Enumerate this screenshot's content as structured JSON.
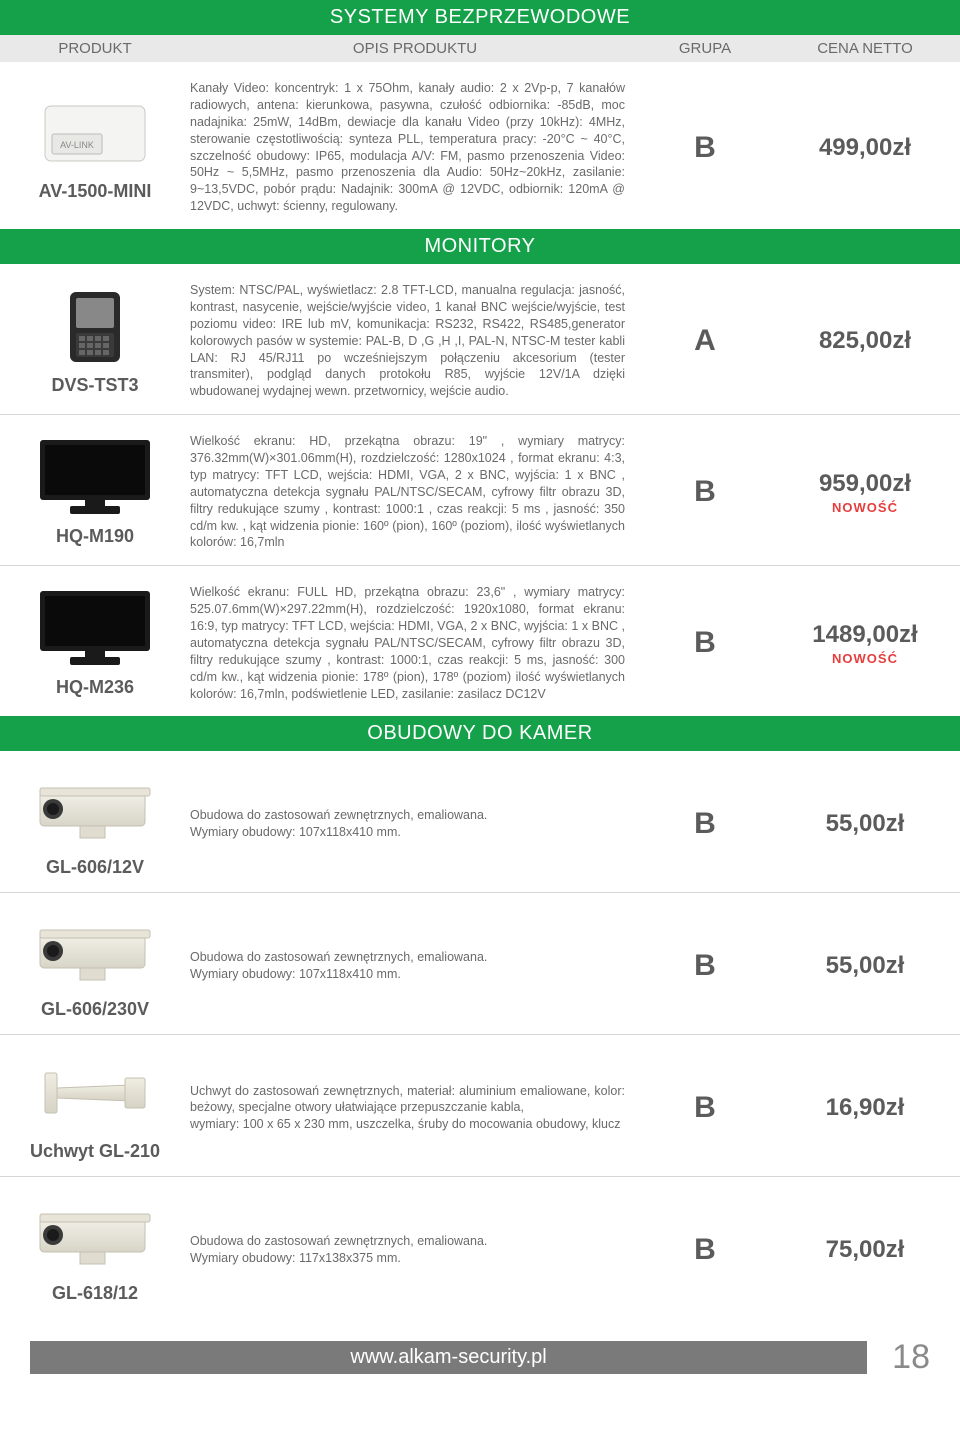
{
  "colors": {
    "green": "#14a14a",
    "header_grey": "#e9e9e9",
    "text": "#5c5c5c",
    "red": "#e63e3e",
    "footer_grey": "#7a7a7a"
  },
  "headers": {
    "product": "PRODUKT",
    "description": "OPIS PRODUKTU",
    "group": "GRUPA",
    "price": "CENA NETTO"
  },
  "sections": [
    {
      "title": "SYSTEMY BEZPRZEWODOWE",
      "show_col_headers": true,
      "rows": [
        {
          "icon": "box",
          "name": "AV-1500-MINI",
          "desc": "Kanały Video: koncentryk: 1 x 75Ohm, kanały audio: 2 x 2Vp-p, 7 kanałów radiowych, antena: kierunkowa, pasywna, czułość odbiornika: -85dB, moc nadajnika: 25mW, 14dBm, dewiacje dla kanału Video (przy 10kHz): 4MHz, sterowanie częstotliwością: synteza PLL, temperatura pracy: -20°C ~ 40°C, szczelność obudowy: IP65, modulacja A/V: FM, pasmo przenoszenia Video: 50Hz ~ 5,5MHz, pasmo przenoszenia dla Audio: 50Hz~20kHz, zasilanie: 9~13,5VDC, pobór prądu: Nadajnik: 300mA @ 12VDC, odbiornik: 120mA @ 12VDC, uchwyt: ścienny, regulowany.",
          "group": "B",
          "price": "499,00zł",
          "novelty": false
        }
      ]
    },
    {
      "title": "MONITORY",
      "show_col_headers": false,
      "rows": [
        {
          "icon": "tester",
          "name": "DVS-TST3",
          "desc": "System: NTSC/PAL, wyświetlacz: 2.8 TFT-LCD, manualna regulacja: jasność, kontrast, nasycenie, wejście/wyjście video, 1 kanał BNC wejście/wyjście, test poziomu video: IRE lub mV, komunikacja: RS232, RS422, RS485,generator kolorowych pasów w systemie: PAL-B, D ,G ,H ,I, PAL-N, NTSC-M tester kabli LAN: RJ 45/RJ11 po wcześniejszym połączeniu akcesorium (tester transmiter), podgląd danych protokołu R85, wyjście 12V/1A dzięki wbudowanej wydajnej wewn. przetwornicy, wejście audio.",
          "group": "A",
          "price": "825,00zł",
          "novelty": false
        },
        {
          "icon": "monitor",
          "name": "HQ-M190",
          "desc": "Wielkość ekranu: HD, przekątna obrazu: 19\" , wymiary matrycy: 376.32mm(W)×301.06mm(H), rozdzielczość: 1280x1024 , format ekranu: 4:3, typ matrycy: TFT LCD, wejścia: HDMI, VGA, 2 x BNC, wyjścia: 1 x BNC , automatyczna detekcja sygnału PAL/NTSC/SECAM, cyfrowy filtr obrazu 3D, filtry redukujące szumy , kontrast: 1000:1 , czas reakcji: 5 ms , jasność: 350 cd/m kw. , kąt widzenia pionie: 160º (pion), 160º (poziom), ilość wyświetlanych kolorów: 16,7mln",
          "group": "B",
          "price": "959,00zł",
          "novelty": true
        },
        {
          "icon": "monitor",
          "name": "HQ-M236",
          "desc": "Wielkość ekranu: FULL HD, przekątna obrazu: 23,6\" , wymiary matrycy: 525.07.6mm(W)×297.22mm(H), rozdzielczość: 1920x1080, format ekranu: 16:9, typ matrycy: TFT LCD, wejścia: HDMI, VGA, 2 x BNC, wyjścia: 1 x BNC , automatyczna detekcja sygnału PAL/NTSC/SECAM, cyfrowy filtr obrazu 3D, filtry redukujące szumy , kontrast: 1000:1, czas reakcji: 5 ms, jasność: 300 cd/m kw., kąt widzenia pionie: 178º (pion), 178º (poziom) ilość wyświetlanych kolorów: 16,7mln, podświetlenie LED, zasilanie: zasilacz DC12V",
          "group": "B",
          "price": "1489,00zł",
          "novelty": true
        }
      ]
    },
    {
      "title": "OBUDOWY DO KAMER",
      "show_col_headers": false,
      "rows": [
        {
          "icon": "housing",
          "name": "GL-606/12V",
          "desc": "Obudowa do zastosowań zewnętrznych, emaliowana.\nWymiary obudowy: 107x118x410 mm.",
          "group": "B",
          "price": "55,00zł",
          "novelty": false
        },
        {
          "icon": "housing",
          "name": "GL-606/230V",
          "desc": "Obudowa do zastosowań zewnętrznych, emaliowana.\nWymiary obudowy: 107x118x410 mm.",
          "group": "B",
          "price": "55,00zł",
          "novelty": false
        },
        {
          "icon": "bracket",
          "name": "Uchwyt GL-210",
          "desc": "Uchwyt do zastosowań zewnętrznych, materiał: aluminium emaliowane, kolor: beżowy, specjalne otwory ułatwiające przepuszczanie kabla,\nwymiary: 100 x 65 x 230 mm, uszczelka, śruby do mocowania obudowy, klucz",
          "group": "B",
          "price": "16,90zł",
          "novelty": false
        },
        {
          "icon": "housing",
          "name": "GL-618/12",
          "desc": "Obudowa do zastosowań zewnętrznych, emaliowana.\nWymiary obudowy: 117x138x375 mm.",
          "group": "B",
          "price": "75,00zł",
          "novelty": false
        }
      ]
    }
  ],
  "novelty_label": "NOWOŚĆ",
  "footer": {
    "url": "www.alkam-security.pl",
    "page": "18"
  }
}
